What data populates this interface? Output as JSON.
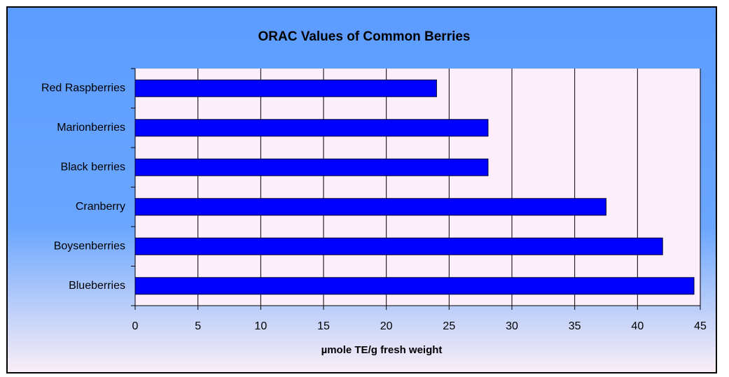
{
  "chart_data": {
    "type": "bar",
    "orientation": "horizontal",
    "title": "ORAC Values of Common Berries",
    "xlabel": "µmole TE/g fresh weight",
    "categories": [
      "Red Raspberries",
      "Marionberries",
      "Black berries",
      "Cranberry",
      "Boysenberries",
      "Blueberries"
    ],
    "values": [
      24,
      28.1,
      28.1,
      37.5,
      42,
      44.5
    ],
    "color": "#0000ff",
    "xlim": [
      0,
      45
    ],
    "xticks": [
      0,
      5,
      10,
      15,
      20,
      25,
      30,
      35,
      40,
      45
    ],
    "grid": true
  }
}
